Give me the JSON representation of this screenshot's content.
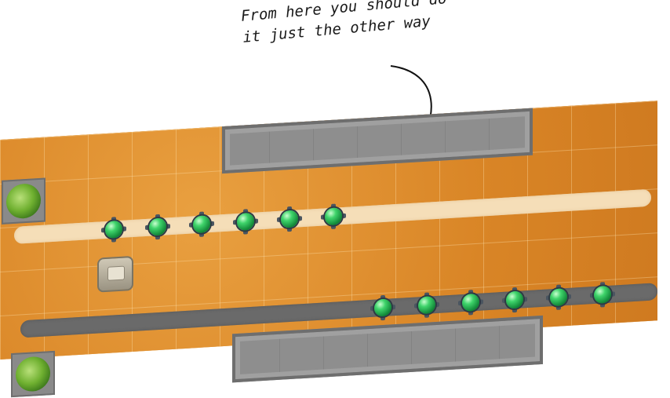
{
  "annotation": {
    "line1": "From here you should do",
    "line2": "it just the other way"
  },
  "board": {
    "walls": [
      "wall-top",
      "wall-bottom"
    ],
    "corners": [
      "plant-icon",
      "plant-icon"
    ],
    "paths": [
      {
        "name": "light-path",
        "color": "#f5deb8",
        "gems": 6
      },
      {
        "name": "dark-path",
        "color": "#6a6a6a",
        "gems": 6
      }
    ]
  },
  "colors": {
    "floor": "#dc8a2a",
    "wall": "#8e8e8e",
    "gem": "#3fd46b"
  }
}
